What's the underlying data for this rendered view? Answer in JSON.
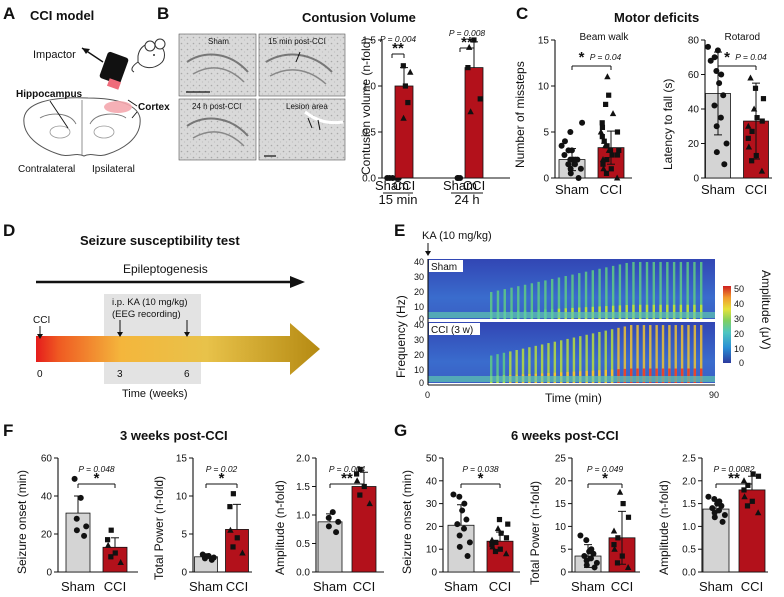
{
  "panels": {
    "A": {
      "letter": "A",
      "title": "CCI model",
      "impactor": "Impactor",
      "hippocampus": "Hippocampus",
      "cortex": "Cortex",
      "contralateral": "Contralateral",
      "ipsilateral": "Ipsilateral"
    },
    "B": {
      "letter": "B",
      "title": "Contusion Volume",
      "img_labels": [
        "Sham",
        "15 min post-CCI",
        "24 h post-CCI",
        "Lesion area"
      ]
    },
    "C": {
      "letter": "C",
      "title": "Motor deficits"
    },
    "D": {
      "letter": "D",
      "title": "Seizure susceptibility test",
      "epileptogenesis": "Epileptogenesis",
      "cci": "CCI",
      "ip_line1": "i.p. KA (10 mg/kg)",
      "ip_line2": "(EEG recording)",
      "ticks": [
        "0",
        "3",
        "6"
      ],
      "xlabel": "Time (weeks)"
    },
    "E": {
      "letter": "E",
      "ka_label": "KA (10 mg/kg)",
      "sham_label": "Sham",
      "cci_label": "CCI (3 w)",
      "ylabel": "Frequency (Hz)",
      "yticks": [
        "40",
        "30",
        "20",
        "10",
        "0"
      ],
      "xlabel": "Time (min)",
      "xticks": [
        "0",
        "90"
      ],
      "cbar_label": "Amplitude (μV)",
      "cbar_ticks": [
        "50",
        "40",
        "30",
        "20",
        "10",
        "0"
      ]
    },
    "F": {
      "letter": "F",
      "title": "3 weeks post-CCI"
    },
    "G": {
      "letter": "G",
      "title": "6 weeks post-CCI"
    }
  },
  "colors": {
    "sham": "#d4d4d4",
    "cci": "#b3111b",
    "red_marker": "#d51b1b"
  },
  "chart_data": [
    {
      "id": "B",
      "type": "bar",
      "title": "Contusion Volume",
      "ylabel": "Contusion volume (n-fold)",
      "ylim": [
        0,
        1.5
      ],
      "yticks": [
        "0.0",
        "0.5",
        "1.0",
        "1.5"
      ],
      "categories": [
        "Sham",
        "CCI",
        "Sham",
        "CCI"
      ],
      "groups": [
        "15 min",
        "24 h"
      ],
      "values": [
        0,
        1.0,
        0,
        1.2
      ],
      "errors": [
        0,
        0.2,
        0,
        0.28
      ],
      "points": [
        [
          0,
          0,
          0,
          0,
          0
        ],
        [
          0.65,
          0.82,
          1.0,
          1.15,
          1.22
        ],
        [
          0,
          0,
          0
        ],
        [
          0.72,
          0.86,
          1.2,
          1.42,
          1.5
        ]
      ],
      "annotations": [
        {
          "p": "P = 0.004",
          "stars": "**"
        },
        {
          "p": "P = 0.008",
          "stars": "**"
        }
      ]
    },
    {
      "id": "C1",
      "type": "bar",
      "subtitle": "Beam walk",
      "ylabel": "Number of missteps",
      "ylim": [
        0,
        15
      ],
      "yticks": [
        "0",
        "5",
        "10",
        "15"
      ],
      "categories": [
        "Sham",
        "CCI"
      ],
      "values": [
        2.0,
        3.3
      ],
      "errors": [
        1.2,
        1.8
      ],
      "points": [
        [
          0,
          0.5,
          1,
          1,
          1.5,
          1.5,
          2,
          2,
          2,
          2,
          2.5,
          3,
          3,
          3.5,
          4,
          5,
          6
        ],
        [
          0,
          0.5,
          1,
          1,
          1.5,
          2,
          2,
          2.5,
          2.5,
          3,
          3,
          3,
          3.5,
          3.5,
          4,
          4,
          4.5,
          5,
          5,
          5.5,
          6,
          7,
          8,
          9,
          11
        ]
      ],
      "annotations": [
        {
          "p": "P = 0.04",
          "stars": "*"
        }
      ]
    },
    {
      "id": "C2",
      "type": "bar",
      "subtitle": "Rotarod",
      "ylabel": "Latency to fall (s)",
      "ylim": [
        0,
        80
      ],
      "yticks": [
        "0",
        "20",
        "40",
        "60",
        "80"
      ],
      "categories": [
        "Sham",
        "CCI"
      ],
      "values": [
        49,
        33
      ],
      "errors": [
        24,
        22
      ],
      "points": [
        [
          8,
          15,
          20,
          30,
          35,
          42,
          48,
          55,
          60,
          62,
          68,
          70,
          74,
          76
        ],
        [
          4,
          10,
          13,
          18,
          23,
          27,
          30,
          33,
          35,
          40,
          46,
          52,
          58
        ]
      ],
      "annotations": [
        {
          "p": "P = 0.04",
          "stars": "*"
        }
      ]
    },
    {
      "id": "F1",
      "type": "bar",
      "ylabel": "Seizure onset (min)",
      "ylim": [
        0,
        60
      ],
      "yticks": [
        "0",
        "20",
        "40",
        "60"
      ],
      "categories": [
        "Sham",
        "CCI"
      ],
      "values": [
        31,
        13
      ],
      "errors": [
        9,
        5
      ],
      "points": [
        [
          19,
          22,
          24,
          28,
          39,
          49
        ],
        [
          5,
          8,
          10,
          14,
          17,
          22
        ]
      ],
      "annotations": [
        {
          "p": "P = 0.048",
          "stars": "*"
        }
      ]
    },
    {
      "id": "F2",
      "type": "bar",
      "ylabel": "Total Power (n-fold)",
      "ylim": [
        0,
        15
      ],
      "yticks": [
        "0",
        "5",
        "10",
        "15"
      ],
      "categories": [
        "Sham",
        "CCI"
      ],
      "values": [
        2.0,
        5.6
      ],
      "errors": [
        0.4,
        3.3
      ],
      "points": [
        [
          1.6,
          1.8,
          1.9,
          2.0,
          2.1,
          2.3
        ],
        [
          2.5,
          3.3,
          4.5,
          5.5,
          8.6,
          10.3
        ]
      ],
      "annotations": [
        {
          "p": "P = 0.02",
          "stars": "*"
        }
      ]
    },
    {
      "id": "F3",
      "type": "bar",
      "ylabel": "Amplitude (n-fold)",
      "ylim": [
        0,
        2.0
      ],
      "yticks": [
        "0.0",
        "0.5",
        "1.0",
        "1.5",
        "2.0"
      ],
      "categories": [
        "Sham",
        "CCI"
      ],
      "values": [
        0.88,
        1.5
      ],
      "errors": [
        0.14,
        0.25
      ],
      "points": [
        [
          0.7,
          0.8,
          0.88,
          0.95,
          1.05
        ],
        [
          1.2,
          1.35,
          1.5,
          1.6,
          1.72,
          1.8
        ]
      ],
      "annotations": [
        {
          "p": "P = 0.004",
          "stars": "**"
        }
      ]
    },
    {
      "id": "G1",
      "type": "bar",
      "ylabel": "Seizure onset (min)",
      "ylim": [
        0,
        50
      ],
      "yticks": [
        "0",
        "10",
        "20",
        "30",
        "40",
        "50"
      ],
      "categories": [
        "Sham",
        "CCI"
      ],
      "values": [
        20.5,
        13.5
      ],
      "errors": [
        9,
        4
      ],
      "points": [
        [
          7,
          11,
          13,
          16,
          19,
          21,
          23,
          27,
          30,
          33,
          34
        ],
        [
          8,
          9,
          10,
          11,
          12,
          13,
          14,
          15,
          17,
          19,
          21,
          23
        ]
      ],
      "annotations": [
        {
          "p": "P = 0.038",
          "stars": "*"
        }
      ]
    },
    {
      "id": "G2",
      "type": "bar",
      "ylabel": "Total Power (n-fold)",
      "ylim": [
        0,
        25
      ],
      "yticks": [
        "0",
        "5",
        "10",
        "15",
        "20",
        "25"
      ],
      "categories": [
        "Sham",
        "CCI"
      ],
      "values": [
        3.5,
        7.5
      ],
      "errors": [
        2.5,
        5.8
      ],
      "points": [
        [
          1,
          1.5,
          2,
          2.5,
          3,
          3.5,
          4,
          4.5,
          5,
          7,
          8
        ],
        [
          1,
          2,
          3.5,
          5,
          6,
          7.5,
          9,
          12,
          15,
          17.5
        ]
      ],
      "annotations": [
        {
          "p": "P = 0.049",
          "stars": "*"
        }
      ]
    },
    {
      "id": "G3",
      "type": "bar",
      "ylabel": "Amplitude (n-fold)",
      "ylim": [
        0,
        2.5
      ],
      "yticks": [
        "0.0",
        "0.5",
        "1.0",
        "1.5",
        "2.0",
        "2.5"
      ],
      "categories": [
        "Sham",
        "CCI"
      ],
      "values": [
        1.38,
        1.8
      ],
      "errors": [
        0.18,
        0.3
      ],
      "points": [
        [
          1.1,
          1.2,
          1.25,
          1.3,
          1.35,
          1.4,
          1.45,
          1.5,
          1.55,
          1.6,
          1.65
        ],
        [
          1.3,
          1.45,
          1.55,
          1.65,
          1.8,
          1.9,
          2.0,
          2.1,
          2.15
        ]
      ],
      "annotations": [
        {
          "p": "P = 0.0082",
          "stars": "**"
        }
      ]
    }
  ]
}
